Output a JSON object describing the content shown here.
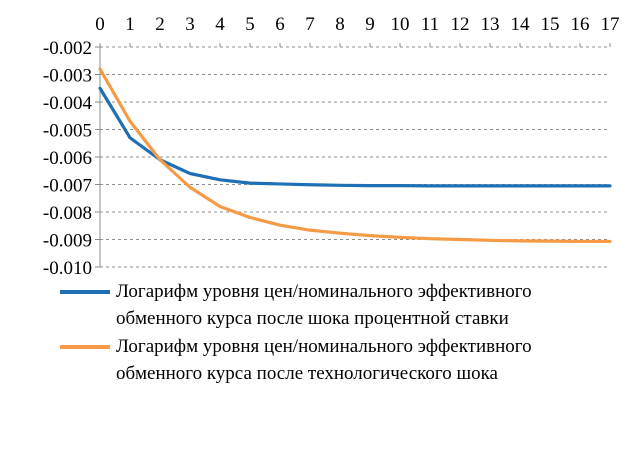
{
  "chart_data": {
    "type": "line",
    "title": "",
    "xlabel": "",
    "ylabel": "",
    "x": [
      0,
      1,
      2,
      3,
      4,
      5,
      6,
      7,
      8,
      9,
      10,
      11,
      12,
      13,
      14,
      15,
      16,
      17
    ],
    "x_tick_labels": [
      "0",
      "1",
      "2",
      "3",
      "4",
      "5",
      "6",
      "7",
      "8",
      "9",
      "10",
      "11",
      "12",
      "13",
      "14",
      "15",
      "16",
      "17"
    ],
    "xaxis_position": "top",
    "ylim": [
      -0.01,
      -0.002
    ],
    "y_tick_labels": [
      "-0.002",
      "-0.003",
      "-0.004",
      "-0.005",
      "-0.006",
      "-0.007",
      "-0.008",
      "-0.009",
      "-0.010"
    ],
    "grid": "horizontal dashed",
    "legend_position": "bottom",
    "series": [
      {
        "name": "Логарифм уровня цен/номинального эффективного обменного курса после шока процентной ставки",
        "color": "#1f6fb4",
        "values": [
          -0.0035,
          -0.0053,
          -0.0061,
          -0.0066,
          -0.00683,
          -0.00695,
          -0.00698,
          -0.00701,
          -0.00703,
          -0.00704,
          -0.00704,
          -0.00705,
          -0.00705,
          -0.00705,
          -0.00705,
          -0.00705,
          -0.00705,
          -0.00705
        ]
      },
      {
        "name": "Логарифм уровня цен/номинального эффективного обменного курса после технологического шока",
        "color": "#f59a45",
        "values": [
          -0.0028,
          -0.0047,
          -0.0061,
          -0.0071,
          -0.0078,
          -0.0082,
          -0.00848,
          -0.00866,
          -0.00877,
          -0.00886,
          -0.00892,
          -0.00897,
          -0.009,
          -0.00903,
          -0.00905,
          -0.00906,
          -0.00907,
          -0.00907
        ]
      }
    ]
  }
}
